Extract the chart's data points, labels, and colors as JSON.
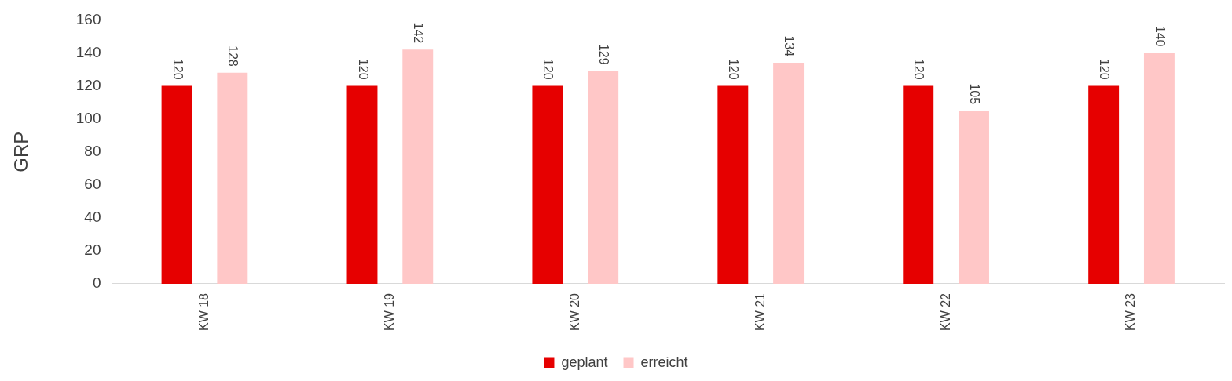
{
  "chart_data": {
    "type": "bar",
    "ylabel": "GRP",
    "categories": [
      "KW 18",
      "KW 19",
      "KW 20",
      "KW 21",
      "KW 22",
      "KW 23"
    ],
    "series": [
      {
        "name": "geplant",
        "color": "#e60000",
        "values": [
          120,
          120,
          120,
          120,
          120,
          120
        ]
      },
      {
        "name": "erreicht",
        "color": "#ffc7c7",
        "values": [
          128,
          142,
          129,
          134,
          105,
          140
        ]
      }
    ],
    "ylim": [
      0,
      160
    ],
    "yticks": [
      0,
      20,
      40,
      60,
      80,
      100,
      120,
      140,
      160
    ],
    "data_labels": true,
    "legend": "bottom"
  }
}
